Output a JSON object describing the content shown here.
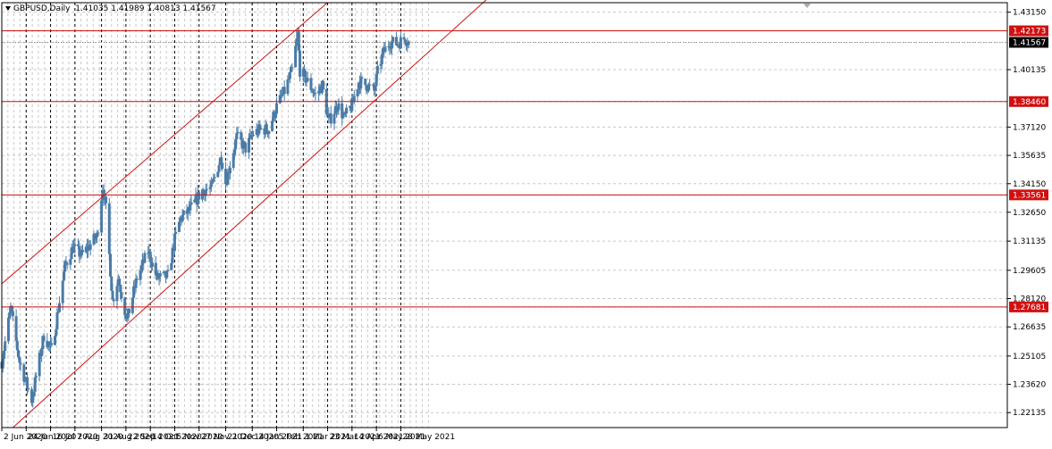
{
  "header": {
    "symbol": "GBPUSD,Daily",
    "ohlc": "1.41035 1.41989 1.40813 1.41567"
  },
  "chart_data": {
    "type": "candlestick",
    "title": "GBPUSD,Daily",
    "ylim": [
      1.2135,
      1.4365
    ],
    "y_ticks": [
      "1.43150",
      "1.41567",
      "1.40135",
      "1.38460",
      "1.37120",
      "1.35635",
      "1.34150",
      "1.33561",
      "1.32650",
      "1.31135",
      "1.29605",
      "1.28120",
      "1.27681",
      "1.26635",
      "1.25105",
      "1.23620",
      "1.22135"
    ],
    "x_ticks": [
      "2 Jun 2020",
      "24 Jun 2020",
      "16 Jul 2020",
      "7 Aug 2020",
      "31 Aug 2020",
      "22 Sep 2020",
      "14 Oct 2020",
      "5 Nov 2020",
      "27 Nov 2020",
      "21 Dec 2020",
      "14 Jan 2021",
      "5 Feb 2021",
      "1 Mar 2021",
      "23 Mar 2021",
      "14 Apr 2021",
      "6 May 2021",
      "28 May 2021"
    ],
    "grid": true,
    "horizontal_levels": [
      {
        "value": 1.42173,
        "label": "1.42173"
      },
      {
        "value": 1.3846,
        "label": "1.38460"
      },
      {
        "value": 1.33561,
        "label": "1.33561"
      },
      {
        "value": 1.27681,
        "label": "1.27681"
      }
    ],
    "current_price": {
      "value": 1.41567,
      "label": "1.41567"
    },
    "channel_lines": [
      {
        "name": "upper",
        "points": [
          [
            "2020-06-02",
            1.289
          ],
          [
            "2021-02-22",
            1.422
          ]
        ]
      },
      {
        "name": "lower",
        "points": [
          [
            "2020-06-12",
            1.2135
          ],
          [
            "2021-06-18",
            1.4085
          ]
        ]
      }
    ],
    "key_closes": [
      [
        "2020-06-02",
        1.248
      ],
      [
        "2020-06-10",
        1.276
      ],
      [
        "2020-06-18",
        1.248
      ],
      [
        "2020-06-29",
        1.228
      ],
      [
        "2020-07-10",
        1.262
      ],
      [
        "2020-07-17",
        1.254
      ],
      [
        "2020-07-29",
        1.298
      ],
      [
        "2020-08-05",
        1.308
      ],
      [
        "2020-08-13",
        1.304
      ],
      [
        "2020-08-27",
        1.314
      ],
      [
        "2020-09-01",
        1.34
      ],
      [
        "2020-09-04",
        1.328
      ],
      [
        "2020-09-10",
        1.28
      ],
      [
        "2020-09-15",
        1.292
      ],
      [
        "2020-09-23",
        1.27
      ],
      [
        "2020-10-02",
        1.292
      ],
      [
        "2020-10-12",
        1.306
      ],
      [
        "2020-10-20",
        1.292
      ],
      [
        "2020-10-30",
        1.293
      ],
      [
        "2020-11-05",
        1.312
      ],
      [
        "2020-11-10",
        1.323
      ],
      [
        "2020-11-19",
        1.328
      ],
      [
        "2020-11-30",
        1.338
      ],
      [
        "2020-12-08",
        1.339
      ],
      [
        "2020-12-17",
        1.356
      ],
      [
        "2020-12-21",
        1.342
      ],
      [
        "2020-12-31",
        1.366
      ],
      [
        "2021-01-08",
        1.36
      ],
      [
        "2021-01-15",
        1.368
      ],
      [
        "2021-01-22",
        1.37
      ],
      [
        "2021-01-29",
        1.37
      ],
      [
        "2021-02-05",
        1.382
      ],
      [
        "2021-02-12",
        1.39
      ],
      [
        "2021-02-19",
        1.401
      ],
      [
        "2021-02-24",
        1.42
      ],
      [
        "2021-02-26",
        1.401
      ],
      [
        "2021-03-05",
        1.395
      ],
      [
        "2021-03-12",
        1.388
      ],
      [
        "2021-03-18",
        1.393
      ],
      [
        "2021-03-24",
        1.374
      ],
      [
        "2021-04-01",
        1.383
      ],
      [
        "2021-04-07",
        1.376
      ],
      [
        "2021-04-14",
        1.383
      ],
      [
        "2021-04-20",
        1.395
      ],
      [
        "2021-04-28",
        1.393
      ],
      [
        "2021-05-04",
        1.39
      ],
      [
        "2021-05-07",
        1.4
      ],
      [
        "2021-05-12",
        1.41
      ],
      [
        "2021-05-18",
        1.416
      ],
      [
        "2021-05-25",
        1.415
      ],
      [
        "2021-06-01",
        1.418
      ],
      [
        "2021-06-04",
        1.4157
      ]
    ],
    "colors": {
      "candle": "#4a7ba7",
      "level": "#d01010",
      "grid": "#c8c8c8",
      "current_price_bg": "#000000"
    }
  }
}
